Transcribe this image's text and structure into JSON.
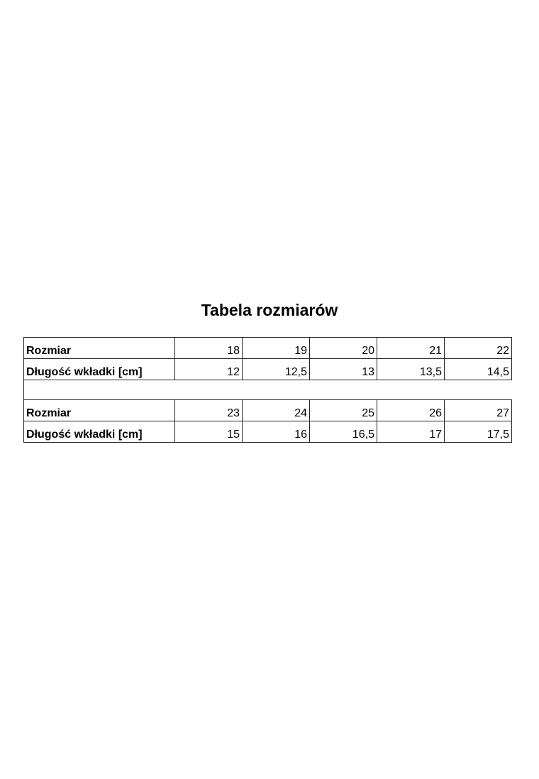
{
  "title": "Tabela rozmiarów",
  "tables": [
    {
      "rows": [
        {
          "label": "Rozmiar",
          "values": [
            "18",
            "19",
            "20",
            "21",
            "22"
          ]
        },
        {
          "label": "Długość wkładki [cm]",
          "values": [
            "12",
            "12,5",
            "13",
            "13,5",
            "14,5"
          ]
        }
      ]
    },
    {
      "rows": [
        {
          "label": "Rozmiar",
          "values": [
            "23",
            "24",
            "25",
            "26",
            "27"
          ]
        },
        {
          "label": "Długość wkładki [cm]",
          "values": [
            "15",
            "16",
            "16,5",
            "17",
            "17,5"
          ]
        }
      ]
    }
  ]
}
